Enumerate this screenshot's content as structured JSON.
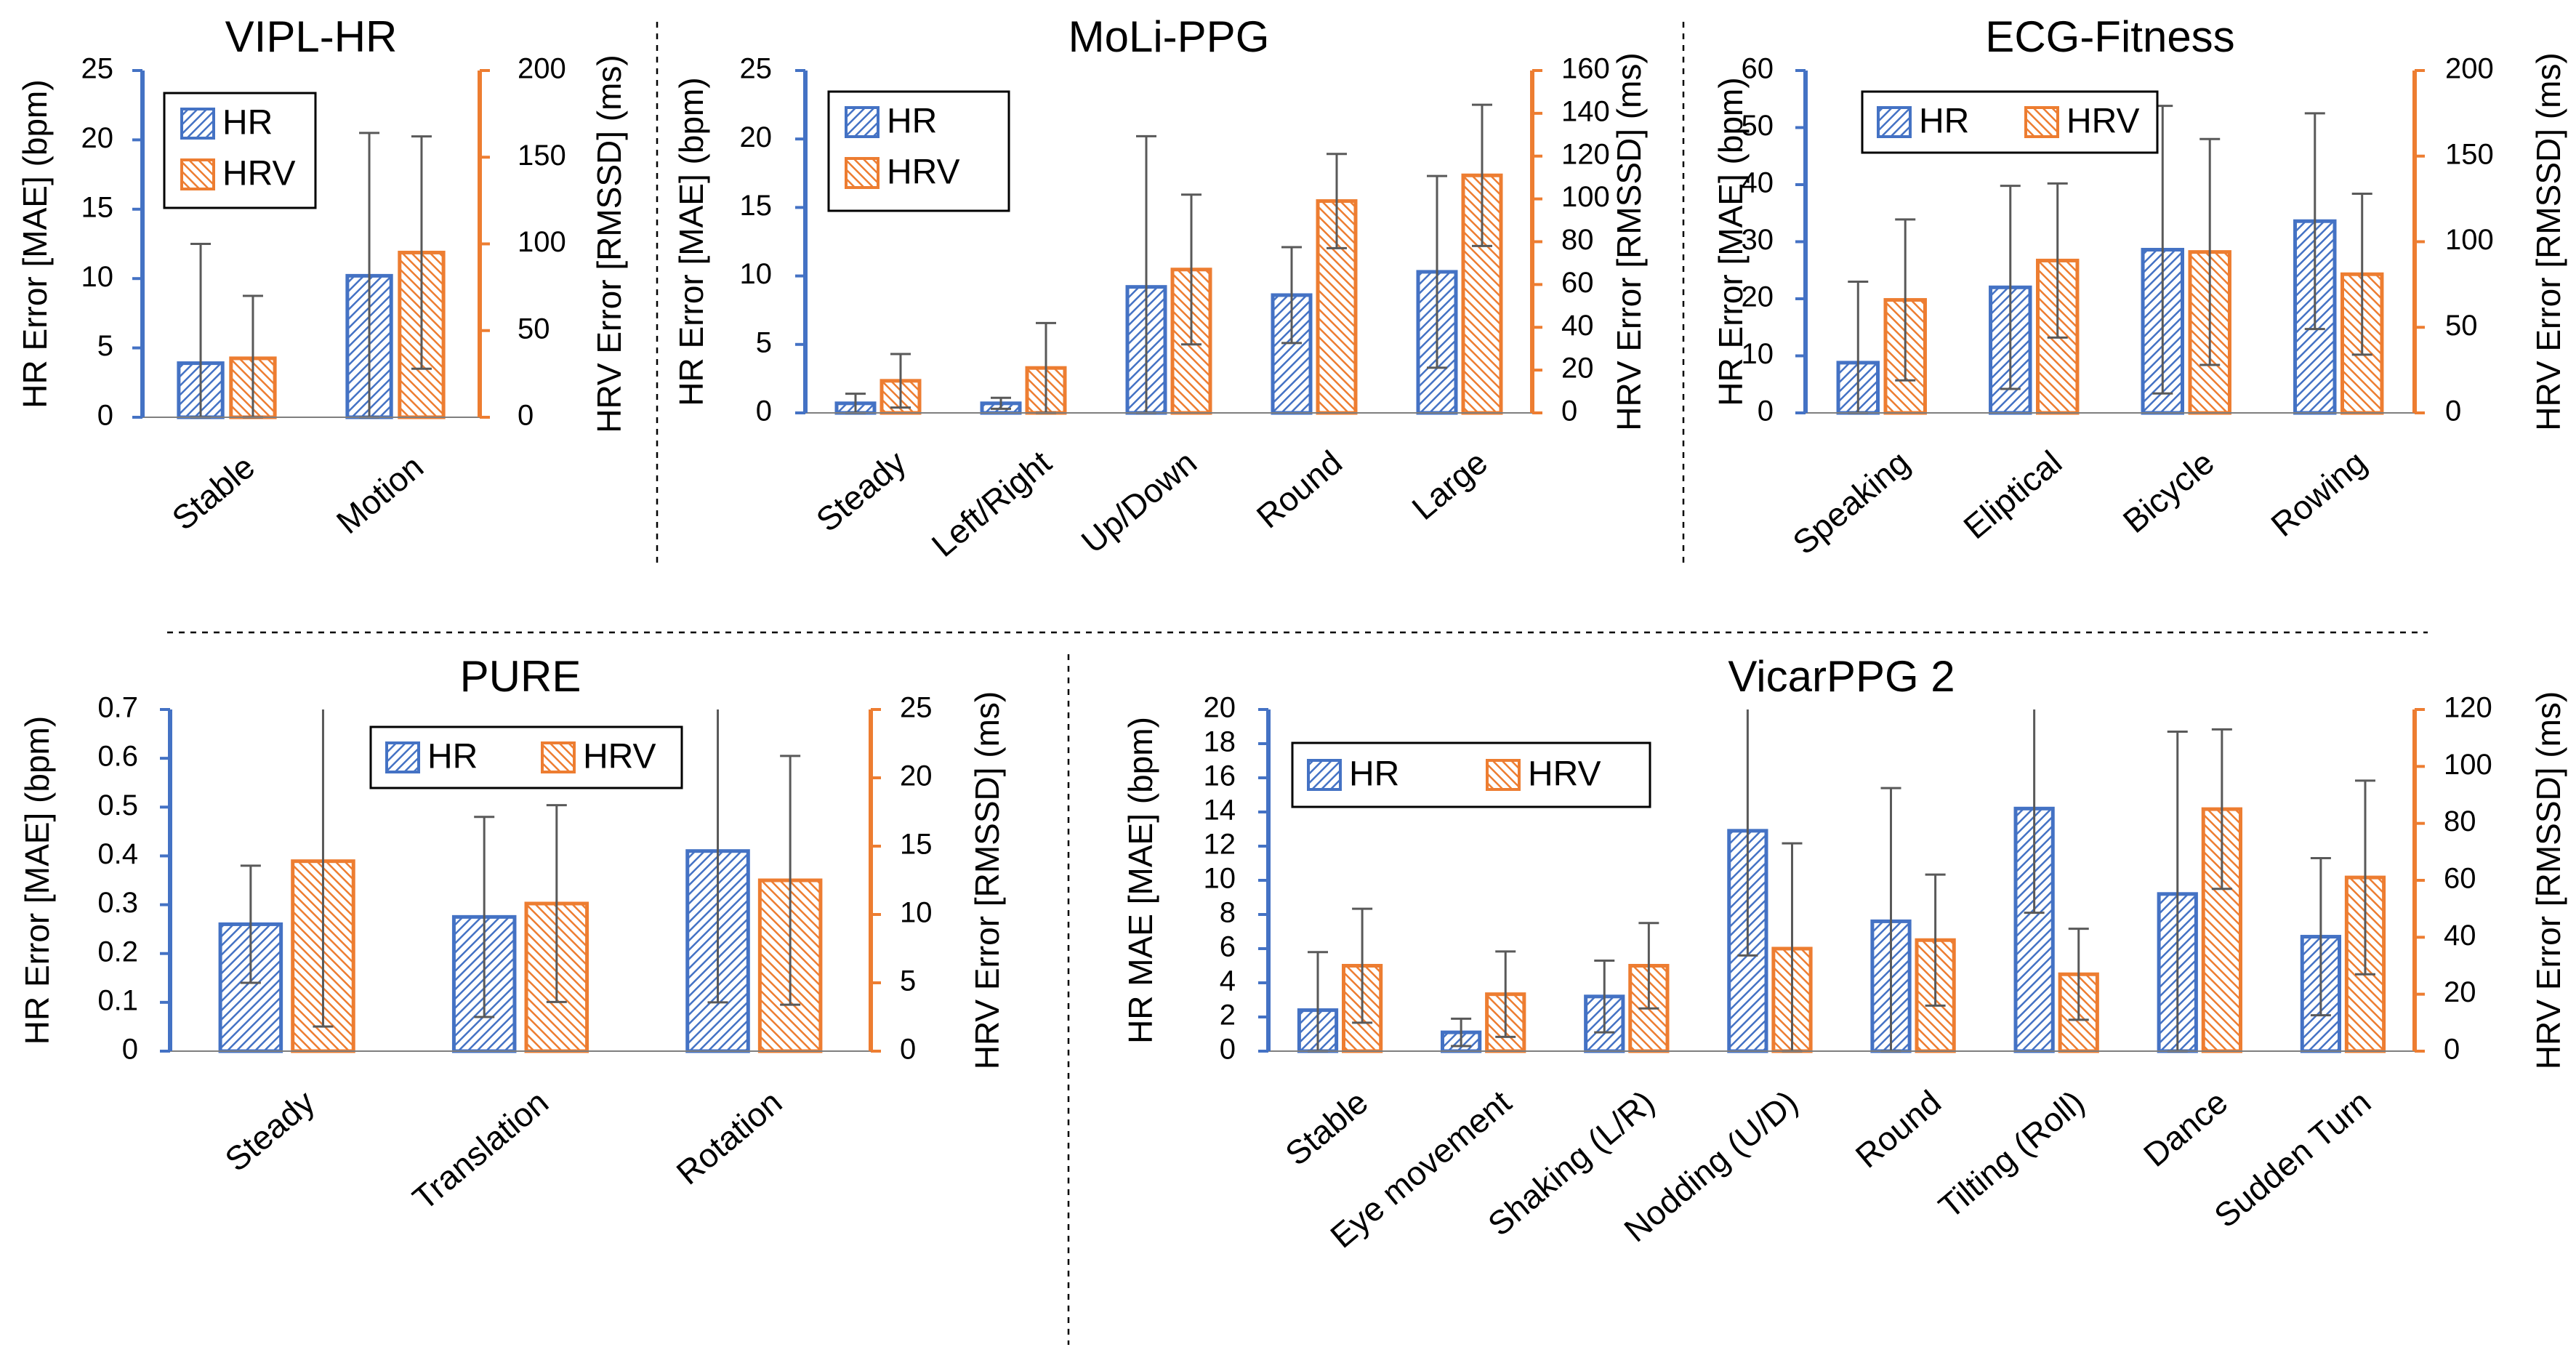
{
  "colors": {
    "hr": "#4472C4",
    "hrv": "#ED7D31",
    "error_bar": "#595959",
    "text": "#000000"
  },
  "chart_data": [
    {
      "id": "vipl",
      "type": "bar",
      "title": "VIPL-HR",
      "categories": [
        "Stable",
        "Motion"
      ],
      "ylabel": "HR Error [MAE] (bpm)",
      "y2label": "HRV Error [RMSSD] (ms)",
      "ylim": [
        0,
        25
      ],
      "y2lim": [
        0,
        200
      ],
      "yticks": [
        0,
        5,
        10,
        15,
        20,
        25
      ],
      "y2ticks": [
        0,
        50,
        100,
        150,
        200
      ],
      "legend": [
        "HR",
        "HRV"
      ],
      "series": [
        {
          "name": "HR",
          "axis": "left",
          "values": [
            3.9,
            10.2
          ],
          "err": [
            8.6,
            10.3
          ]
        },
        {
          "name": "HRV",
          "axis": "right",
          "values": [
            34,
            95
          ],
          "err": [
            36,
            67
          ]
        }
      ]
    },
    {
      "id": "moli",
      "type": "bar",
      "title": "MoLi-PPG",
      "categories": [
        "Steady",
        "Left/Right",
        "Up/Down",
        "Round",
        "Large"
      ],
      "ylabel": "HR Error [MAE] (bpm)",
      "y2label": "HRV Error [RMSSD] (ms)",
      "ylim": [
        0,
        25
      ],
      "y2lim": [
        0,
        160
      ],
      "yticks": [
        0,
        5,
        10,
        15,
        20,
        25
      ],
      "y2ticks": [
        0,
        20,
        40,
        60,
        80,
        100,
        120,
        140,
        160
      ],
      "legend": [
        "HR",
        "HRV"
      ],
      "series": [
        {
          "name": "HR",
          "axis": "left",
          "values": [
            0.7,
            0.7,
            9.2,
            8.6,
            10.3
          ],
          "err": [
            0.7,
            0.4,
            11.0,
            3.5,
            7.0
          ]
        },
        {
          "name": "HRV",
          "axis": "right",
          "values": [
            15,
            21,
            67,
            99,
            111
          ],
          "err": [
            12.5,
            21,
            35,
            22,
            33
          ]
        }
      ]
    },
    {
      "id": "ecg",
      "type": "bar",
      "title": "ECG-Fitness",
      "categories": [
        "Speaking",
        "Eliptical",
        "Bicycle",
        "Rowing"
      ],
      "ylabel": "HR Error [MAE] (bpm)",
      "y2label": "HRV Error [RMSSD] (ms)",
      "ylim": [
        0,
        60
      ],
      "y2lim": [
        0,
        200
      ],
      "yticks": [
        0,
        10,
        20,
        30,
        40,
        50,
        60
      ],
      "y2ticks": [
        0,
        50,
        100,
        150,
        200
      ],
      "legend": [
        "HR",
        "HRV"
      ],
      "series": [
        {
          "name": "HR",
          "axis": "left",
          "values": [
            8.8,
            22.0,
            28.6,
            33.6
          ],
          "err": [
            14.2,
            17.8,
            25.2,
            18.9
          ]
        },
        {
          "name": "HRV",
          "axis": "right",
          "values": [
            66,
            89,
            94,
            81
          ],
          "err": [
            47,
            45,
            66,
            47
          ]
        }
      ]
    },
    {
      "id": "pure",
      "type": "bar",
      "title": "PURE",
      "categories": [
        "Steady",
        "Translation",
        "Rotation"
      ],
      "ylabel": "HR Error [MAE] (bpm)",
      "y2label": "HRV Error [RMSSD] (ms)",
      "ylim": [
        0,
        0.7
      ],
      "y2lim": [
        0,
        25
      ],
      "yticks": [
        "0",
        "0.1",
        "0.2",
        "0.3",
        "0.4",
        "0.5",
        "0.6",
        "0.7"
      ],
      "y2ticks": [
        0,
        5,
        10,
        15,
        20,
        25
      ],
      "legend": [
        "HR",
        "HRV"
      ],
      "series": [
        {
          "name": "HR",
          "axis": "left",
          "values": [
            0.26,
            0.275,
            0.41
          ],
          "err": [
            0.12,
            0.205,
            0.31
          ]
        },
        {
          "name": "HRV",
          "axis": "right",
          "values": [
            13.9,
            10.8,
            12.5
          ],
          "err": [
            12.1,
            7.2,
            9.1
          ]
        }
      ]
    },
    {
      "id": "vicar",
      "type": "bar",
      "title": "VicarPPG 2",
      "categories": [
        "Stable",
        "Eye movement",
        "Shaking (L/R)",
        "Nodding (U/D)",
        "Round",
        "Tilting (Roll)",
        "Dance",
        "Sudden Turn"
      ],
      "ylabel": "HR MAE [MAE] (bpm)",
      "y2label": "HRV Error [RMSSD] (ms)",
      "ylim": [
        0,
        20
      ],
      "y2lim": [
        0,
        120
      ],
      "yticks": [
        0,
        2,
        4,
        6,
        8,
        10,
        12,
        14,
        16,
        18,
        20
      ],
      "y2ticks": [
        0,
        20,
        40,
        60,
        80,
        100,
        120
      ],
      "legend": [
        "HR",
        "HRV"
      ],
      "series": [
        {
          "name": "HR",
          "axis": "left",
          "values": [
            2.4,
            1.1,
            3.2,
            12.9,
            7.6,
            14.2,
            9.2,
            6.7
          ],
          "err": [
            3.4,
            0.8,
            2.1,
            7.3,
            7.8,
            6.1,
            9.5,
            4.6
          ]
        },
        {
          "name": "HRV",
          "axis": "right",
          "values": [
            30,
            20,
            30,
            36,
            39,
            27,
            85,
            61
          ],
          "err": [
            20,
            15,
            15,
            37,
            23,
            16,
            28,
            34
          ]
        }
      ]
    }
  ]
}
